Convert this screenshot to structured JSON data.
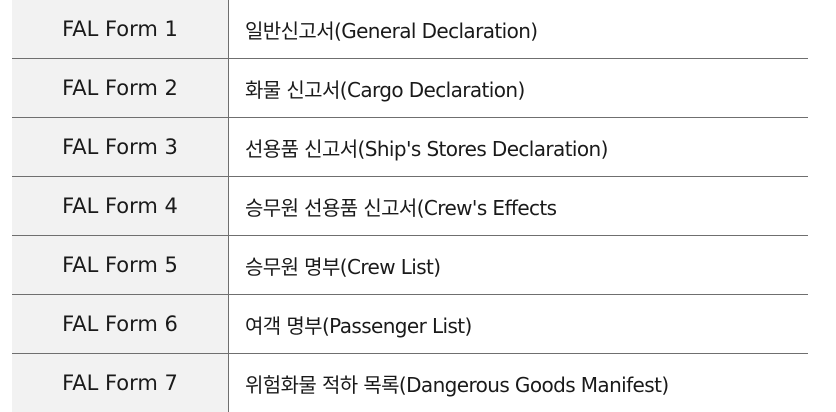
{
  "table": {
    "rows": [
      {
        "form": "FAL Form 1",
        "name": "일반신고서(General Declaration)"
      },
      {
        "form": "FAL Form 2",
        "name": "화물 신고서(Cargo Declaration)"
      },
      {
        "form": "FAL Form 3",
        "name": "선용품 신고서(Ship's Stores Declaration)"
      },
      {
        "form": "FAL Form 4",
        "name": "승무원 선용품 신고서(Crew's Effects"
      },
      {
        "form": "FAL Form 5",
        "name": "승무원 명부(Crew List)"
      },
      {
        "form": "FAL Form 6",
        "name": "여객 명부(Passenger List)"
      },
      {
        "form": "FAL Form 7",
        "name": "위험화물 적하 목록(Dangerous Goods Manifest)"
      }
    ]
  }
}
